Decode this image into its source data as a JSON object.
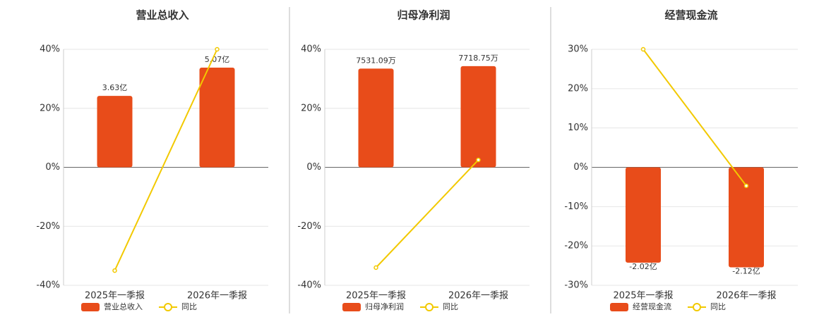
{
  "chart_data": [
    {
      "type": "bar",
      "title": "营业总收入",
      "categories": [
        "2025年一季报",
        "2026年一季报"
      ],
      "series": [
        {
          "name": "营业总收入",
          "color": "#e84c1a",
          "axis": "y2",
          "values": [
            3.63,
            5.07
          ],
          "value_labels": [
            "3.63亿",
            "5.07亿"
          ]
        },
        {
          "name": "同比",
          "color": "#f2c900",
          "type": "line",
          "values": [
            -35,
            40
          ]
        }
      ],
      "ylim": [
        -40,
        40
      ],
      "yticks": [
        {
          "value": -40,
          "label": "-40%"
        },
        {
          "value": -20,
          "label": "-20%"
        },
        {
          "value": 0,
          "label": "0%"
        },
        {
          "value": 20,
          "label": "20%"
        },
        {
          "value": 40,
          "label": "40%"
        }
      ],
      "y2lim": [
        -6,
        6
      ],
      "grid": true
    },
    {
      "type": "bar",
      "title": "归母净利润",
      "categories": [
        "2025年一季报",
        "2026年一季报"
      ],
      "series": [
        {
          "name": "归母净利润",
          "color": "#e84c1a",
          "axis": "y2",
          "values": [
            7531.09,
            7718.75
          ],
          "value_labels": [
            "7531.09万",
            "7718.75万"
          ]
        },
        {
          "name": "同比",
          "color": "#f2c900",
          "type": "line",
          "values": [
            -34,
            2.5
          ]
        }
      ],
      "ylim": [
        -40,
        40
      ],
      "yticks": [
        {
          "value": -40,
          "label": "-40%"
        },
        {
          "value": -20,
          "label": "-20%"
        },
        {
          "value": 0,
          "label": "0%"
        },
        {
          "value": 20,
          "label": "20%"
        },
        {
          "value": 40,
          "label": "40%"
        }
      ],
      "y2lim": [
        -9000,
        9000
      ],
      "grid": true
    },
    {
      "type": "bar",
      "title": "经营现金流",
      "categories": [
        "2025年一季报",
        "2026年一季报"
      ],
      "series": [
        {
          "name": "经营现金流",
          "color": "#e84c1a",
          "axis": "y2",
          "values": [
            -2.02,
            -2.12
          ],
          "value_labels": [
            "-2.02亿",
            "-2.12亿"
          ]
        },
        {
          "name": "同比",
          "color": "#f2c900",
          "type": "line",
          "values": [
            30,
            -4.7
          ]
        }
      ],
      "ylim": [
        -30,
        30
      ],
      "yticks": [
        {
          "value": -30,
          "label": "-30%"
        },
        {
          "value": -20,
          "label": "-20%"
        },
        {
          "value": -10,
          "label": "-10%"
        },
        {
          "value": 0,
          "label": "0%"
        },
        {
          "value": 10,
          "label": "10%"
        },
        {
          "value": 20,
          "label": "20%"
        },
        {
          "value": 30,
          "label": "30%"
        }
      ],
      "y2lim": [
        -2.5,
        2.5
      ],
      "grid": true
    }
  ]
}
